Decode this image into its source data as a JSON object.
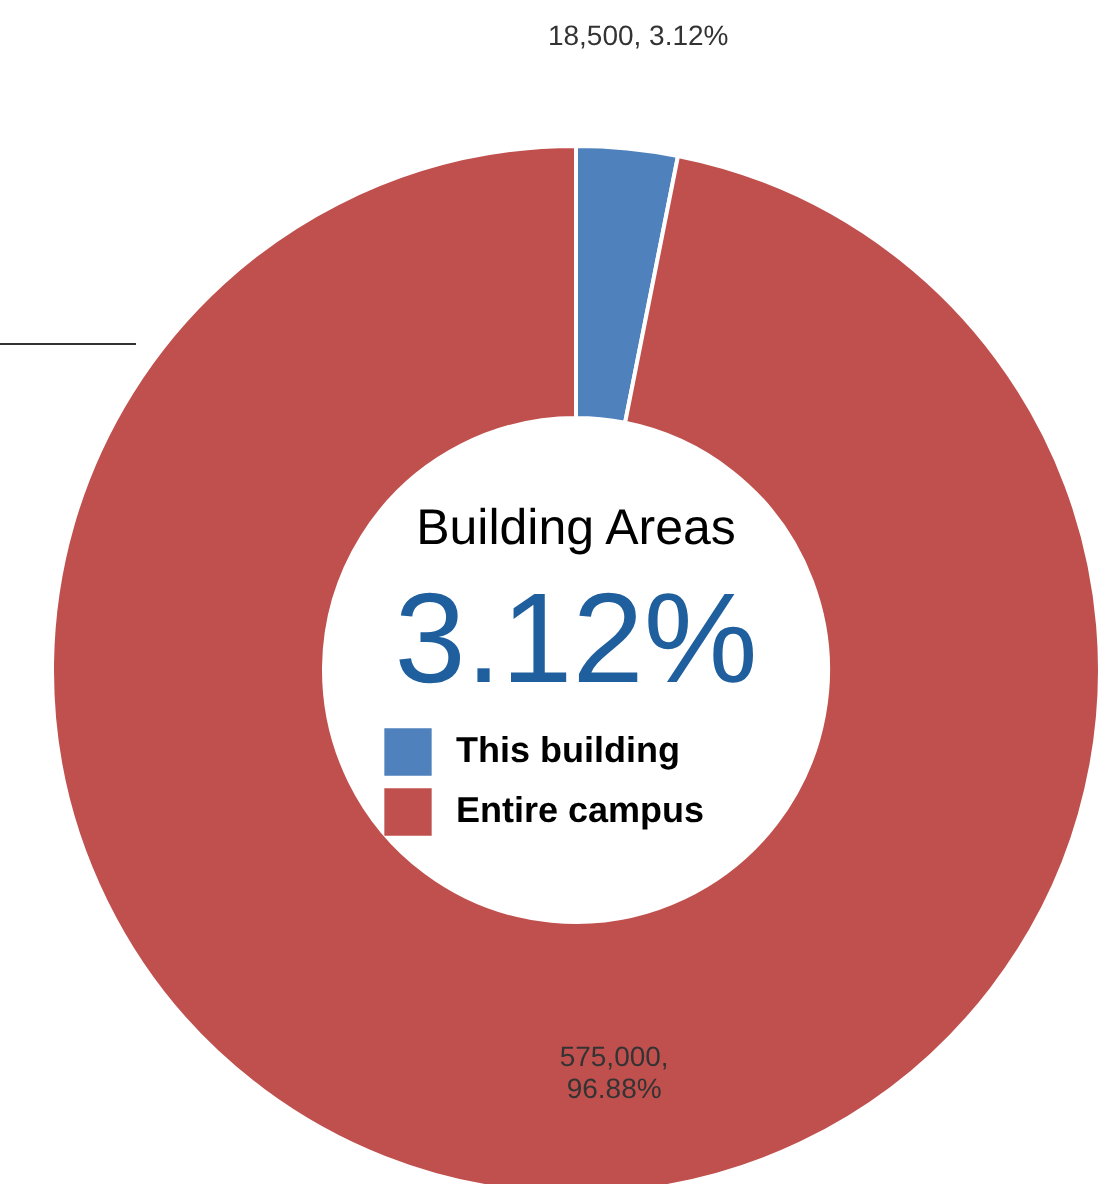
{
  "chart_data": {
    "type": "donut",
    "title": "Building Areas",
    "subtitle": "3.12%",
    "categories": [
      "This building",
      "Entire campus"
    ],
    "values": [
      18500,
      575000
    ],
    "colors": [
      "#4f81bd",
      "#c0504d"
    ],
    "value_labels": [
      "18,500, 3.12%",
      "575,000,\n96.88%"
    ],
    "legend": "center"
  }
}
